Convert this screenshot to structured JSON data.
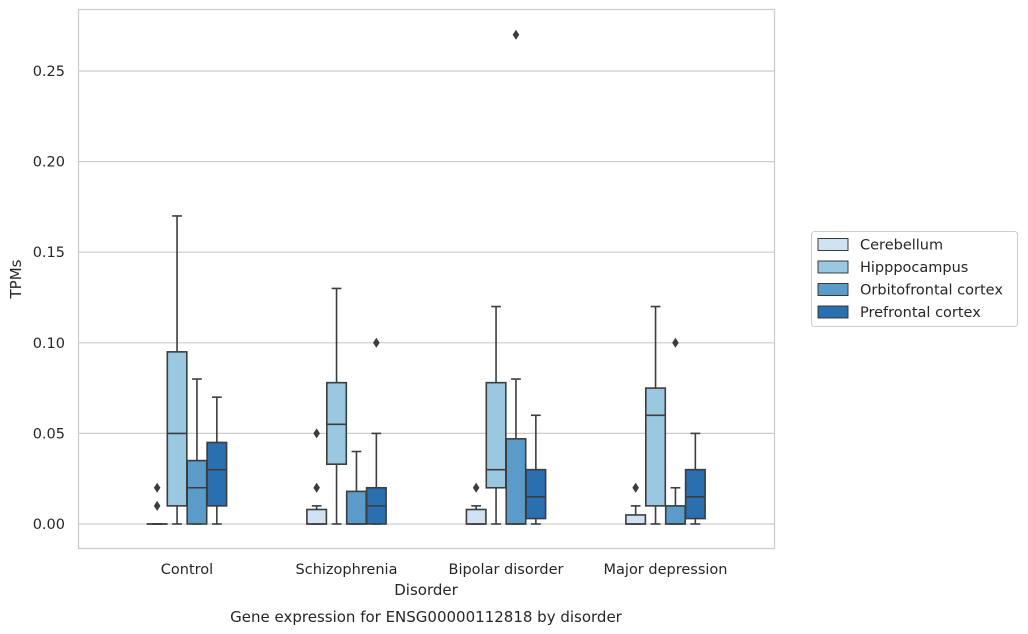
{
  "chart_data": {
    "type": "box",
    "title": "Gene expression for ENSG00000112818 by disorder",
    "xlabel": "Disorder",
    "ylabel": "TPMs",
    "ylim": [
      -0.013,
      0.284
    ],
    "yticks": [
      "0.00",
      "0.05",
      "0.10",
      "0.15",
      "0.20",
      "0.25"
    ],
    "grid": "horizontal",
    "legend_position": "right",
    "categories": [
      "Control",
      "Schizophrenia",
      "Bipolar disorder",
      "Major depression"
    ],
    "series": [
      {
        "name": "Cerebellum",
        "color": "#d0e2f2",
        "boxes": [
          {
            "whislo": 0.0,
            "q1": 0.0,
            "med": 0.0,
            "q3": 0.0,
            "whishi": 0.0,
            "fliers": [
              0.01,
              0.02
            ]
          },
          {
            "whislo": 0.0,
            "q1": 0.0,
            "med": 0.0,
            "q3": 0.008,
            "whishi": 0.01,
            "fliers": [
              0.02,
              0.05
            ]
          },
          {
            "whislo": 0.0,
            "q1": 0.0,
            "med": 0.0,
            "q3": 0.008,
            "whishi": 0.01,
            "fliers": [
              0.02
            ]
          },
          {
            "whislo": 0.0,
            "q1": 0.0,
            "med": 0.0,
            "q3": 0.005,
            "whishi": 0.01,
            "fliers": [
              0.02
            ]
          }
        ]
      },
      {
        "name": "Hipppocampus",
        "color": "#9ac8e0",
        "boxes": [
          {
            "whislo": 0.0,
            "q1": 0.01,
            "med": 0.05,
            "q3": 0.095,
            "whishi": 0.17,
            "fliers": []
          },
          {
            "whislo": 0.0,
            "q1": 0.033,
            "med": 0.055,
            "q3": 0.078,
            "whishi": 0.13,
            "fliers": []
          },
          {
            "whislo": 0.0,
            "q1": 0.02,
            "med": 0.03,
            "q3": 0.078,
            "whishi": 0.12,
            "fliers": []
          },
          {
            "whislo": 0.0,
            "q1": 0.01,
            "med": 0.06,
            "q3": 0.075,
            "whishi": 0.12,
            "fliers": []
          }
        ]
      },
      {
        "name": "Orbitofrontal cortex",
        "color": "#5a9bc9",
        "boxes": [
          {
            "whislo": 0.0,
            "q1": 0.0,
            "med": 0.02,
            "q3": 0.035,
            "whishi": 0.08,
            "fliers": []
          },
          {
            "whislo": 0.0,
            "q1": 0.0,
            "med": 0.0,
            "q3": 0.018,
            "whishi": 0.04,
            "fliers": []
          },
          {
            "whislo": 0.0,
            "q1": 0.0,
            "med": 0.0,
            "q3": 0.047,
            "whishi": 0.08,
            "fliers": [
              0.27
            ]
          },
          {
            "whislo": 0.0,
            "q1": 0.0,
            "med": 0.0,
            "q3": 0.01,
            "whishi": 0.02,
            "fliers": [
              0.1
            ]
          }
        ]
      },
      {
        "name": "Prefrontal cortex",
        "color": "#2a6fb0",
        "boxes": [
          {
            "whislo": 0.0,
            "q1": 0.01,
            "med": 0.03,
            "q3": 0.045,
            "whishi": 0.07,
            "fliers": []
          },
          {
            "whislo": 0.0,
            "q1": 0.0,
            "med": 0.01,
            "q3": 0.02,
            "whishi": 0.05,
            "fliers": [
              0.1
            ]
          },
          {
            "whislo": 0.0,
            "q1": 0.003,
            "med": 0.015,
            "q3": 0.03,
            "whishi": 0.06,
            "fliers": []
          },
          {
            "whislo": 0.0,
            "q1": 0.003,
            "med": 0.015,
            "q3": 0.03,
            "whishi": 0.05,
            "fliers": []
          }
        ]
      }
    ]
  }
}
